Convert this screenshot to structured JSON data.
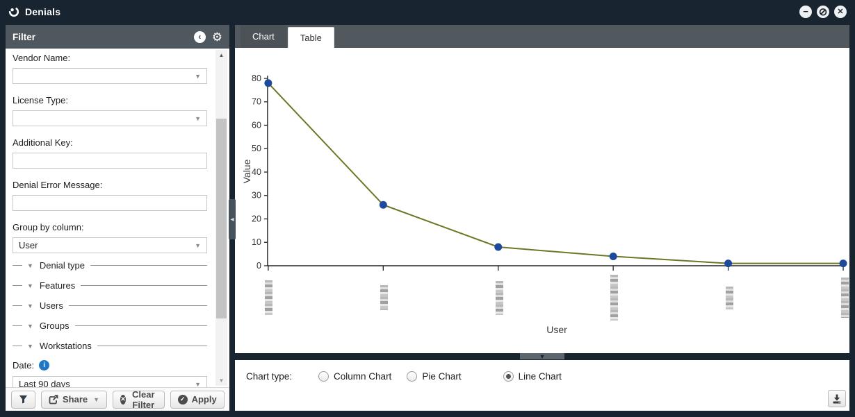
{
  "window": {
    "title": "Denials",
    "controls": {
      "minimize": "−",
      "restore": "⊘",
      "close": "✕"
    }
  },
  "filter_panel": {
    "header": "Filter",
    "fields": [
      {
        "label": "Vendor Name:",
        "type": "select",
        "value": ""
      },
      {
        "label": "License Type:",
        "type": "select",
        "value": ""
      },
      {
        "label": "Additional Key:",
        "type": "text",
        "value": ""
      },
      {
        "label": "Denial Error Message:",
        "type": "text",
        "value": ""
      },
      {
        "label": "Group by column:",
        "type": "select",
        "value": "User"
      }
    ],
    "tree_items": [
      "Denial type",
      "Features",
      "Users",
      "Groups",
      "Workstations"
    ],
    "date": {
      "label": "Date:",
      "value": "Last 90 days"
    },
    "footer": {
      "share": "Share",
      "clear": "Clear Filter",
      "apply": "Apply"
    }
  },
  "tabs": [
    {
      "label": "Chart",
      "active": true
    },
    {
      "label": "Table",
      "active": false
    }
  ],
  "chart_type": {
    "label": "Chart type:",
    "options": [
      "Column Chart",
      "Pie Chart",
      "Line Chart"
    ],
    "selected": "Line Chart"
  },
  "chart_data": {
    "type": "line",
    "xlabel": "User",
    "ylabel": "Value",
    "ylim": [
      0,
      80
    ],
    "ytick_step": 10,
    "categories": [
      "",
      "",
      "",
      "",
      "",
      ""
    ],
    "x_labels_redacted": true,
    "values": [
      78,
      26,
      8,
      4,
      1,
      1
    ],
    "line_color": "#6e7626",
    "point_color": "#1d4a9c",
    "axis_color": "#222222",
    "blurred_label_heights": [
      50,
      36,
      49,
      66,
      33,
      58
    ]
  }
}
